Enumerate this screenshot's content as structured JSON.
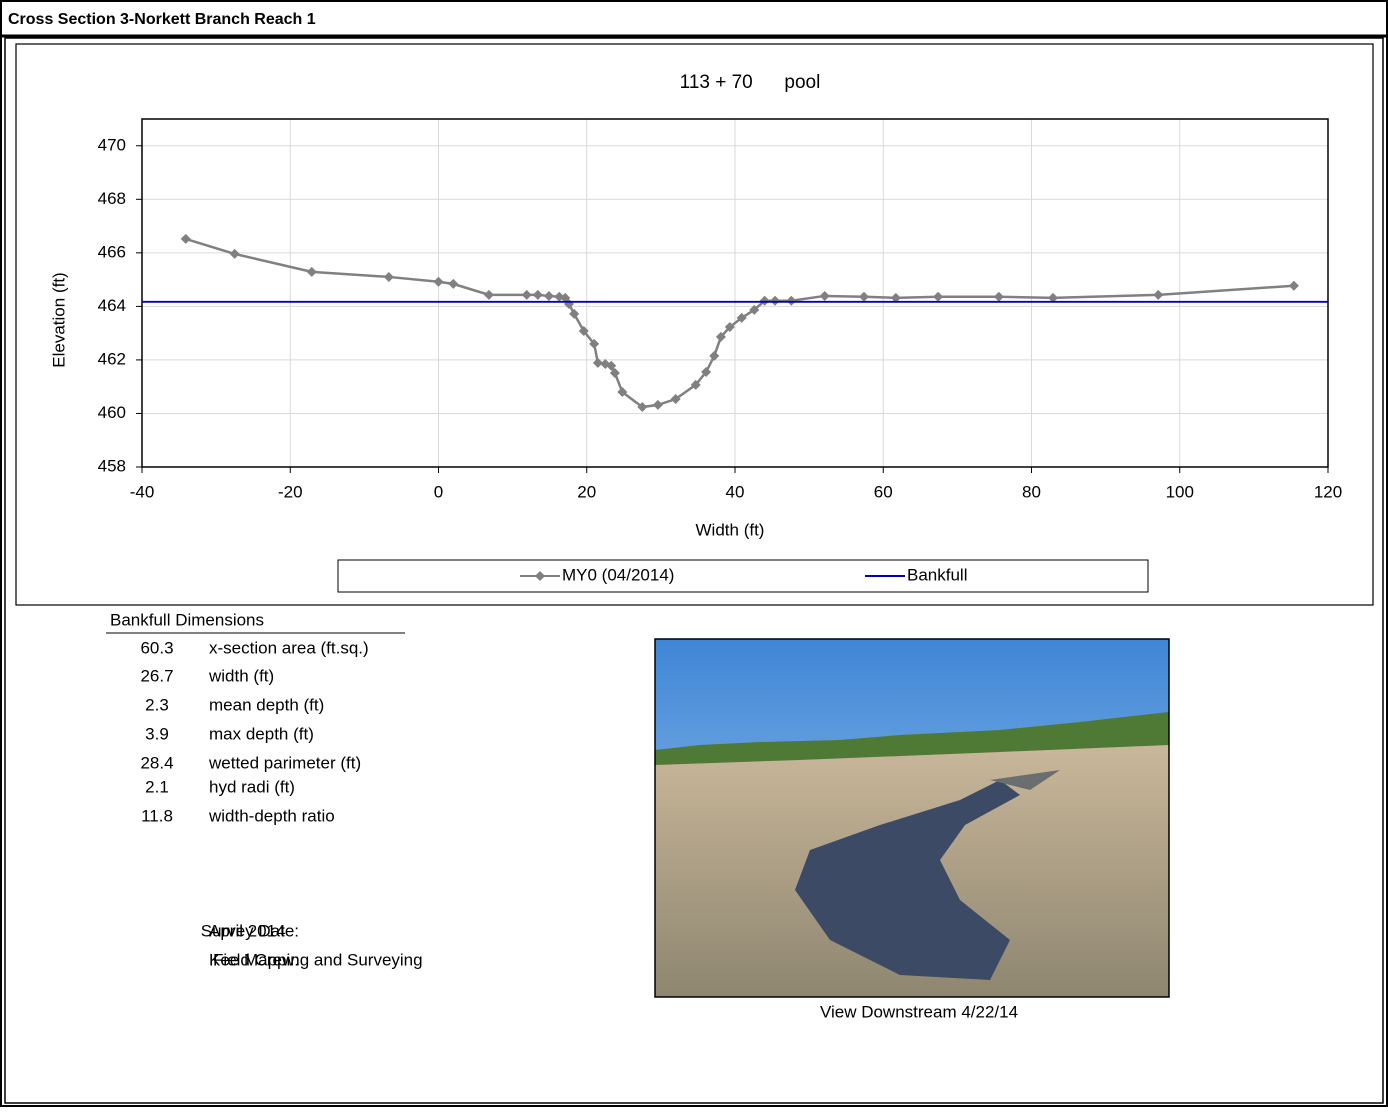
{
  "header": {
    "title": "Cross Section  3-Norkett Branch Reach 1"
  },
  "chart_data": {
    "type": "line",
    "title": "113 + 70      pool",
    "x_label": "Width (ft)",
    "y_label": "Elevation (ft)",
    "xlim": [
      -40,
      120
    ],
    "xticks": [
      -40,
      -20,
      0,
      20,
      40,
      60,
      80,
      100,
      120
    ],
    "ylim": [
      458,
      471
    ],
    "yticks": [
      458,
      460,
      462,
      464,
      466,
      468,
      470
    ],
    "grid": true,
    "legend": "bottom",
    "series": [
      {
        "name": "MY0 (04/2014)",
        "color": "#808080",
        "marker": "diamond",
        "x": [
          -34.1,
          -27.5,
          -17.1,
          -6.7,
          0.0,
          2.0,
          6.8,
          11.9,
          13.4,
          14.9,
          16.3,
          17.1,
          17.6,
          18.3,
          19.6,
          21.0,
          21.5,
          22.5,
          23.3,
          23.8,
          24.8,
          27.5,
          29.6,
          32.0,
          34.7,
          36.1,
          37.2,
          38.1,
          39.3,
          40.9,
          42.6,
          44.0,
          45.4,
          47.6,
          52.1,
          57.4,
          61.7,
          67.4,
          75.6,
          82.9,
          97.1,
          115.4
        ],
        "values": [
          466.52,
          465.96,
          465.29,
          465.1,
          464.92,
          464.84,
          464.43,
          464.43,
          464.43,
          464.39,
          464.36,
          464.32,
          464.09,
          463.72,
          463.08,
          462.6,
          461.89,
          461.85,
          461.78,
          461.51,
          460.8,
          460.24,
          460.32,
          460.54,
          461.07,
          461.55,
          462.15,
          462.86,
          463.23,
          463.57,
          463.87,
          464.21,
          464.21,
          464.21,
          464.39,
          464.36,
          464.32,
          464.36,
          464.36,
          464.32,
          464.43,
          464.77
        ]
      },
      {
        "name": "Bankfull",
        "color": "#0000c0",
        "marker": "none",
        "x": [
          -40,
          120
        ],
        "values": [
          464.17,
          464.17
        ]
      }
    ]
  },
  "dimensions": {
    "title": "Bankfull Dimensions",
    "rows": [
      [
        "60.3",
        "x-section area (ft.sq.)"
      ],
      [
        "26.7",
        "width (ft)"
      ],
      [
        "2.3",
        "mean depth (ft)"
      ],
      [
        "3.9",
        "max depth (ft)"
      ],
      [
        "28.4",
        "wetted parimeter (ft)"
      ],
      [
        "2.1",
        "hyd radi (ft)"
      ],
      [
        "11.8",
        "width-depth ratio"
      ]
    ]
  },
  "survey": {
    "date_label": "Survey Date:",
    "date": "April 2014",
    "crew_label": "Field Crew:",
    "crew": "Kee Mapping and Surveying"
  },
  "photo": {
    "caption": "View Downstream 4/22/14"
  }
}
